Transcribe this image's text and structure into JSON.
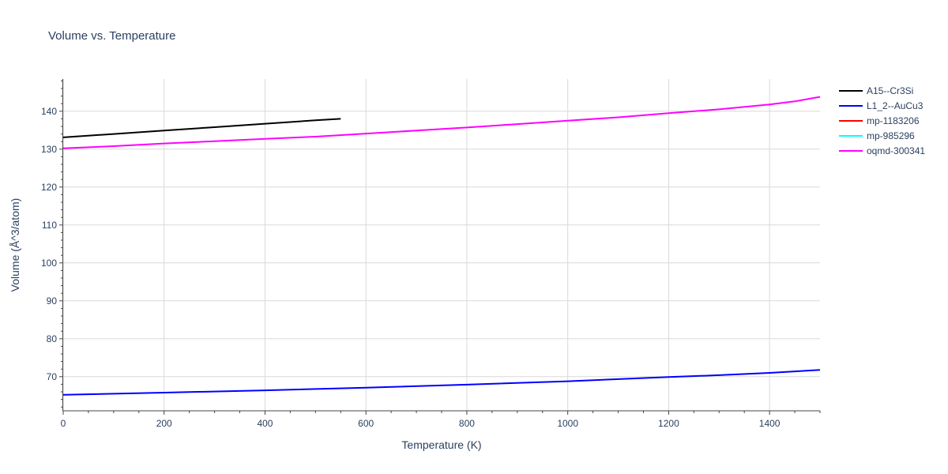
{
  "chart_data": {
    "type": "line",
    "title": "Volume vs. Temperature",
    "xlabel": "Temperature (K)",
    "ylabel": "Volume (Å^3/atom)",
    "xlim": [
      0,
      1500
    ],
    "ylim": [
      61,
      148.5
    ],
    "x_ticks": [
      0,
      200,
      400,
      600,
      800,
      1000,
      1200,
      1400
    ],
    "y_ticks": [
      70,
      80,
      90,
      100,
      110,
      120,
      130,
      140
    ],
    "grid": true,
    "legend_position": "top-right",
    "series": [
      {
        "name": "A15--Cr3Si",
        "color": "#000000",
        "x": [
          0,
          100,
          200,
          300,
          400,
          500,
          550
        ],
        "y": [
          133.1,
          134.0,
          134.9,
          135.8,
          136.7,
          137.6,
          138.0
        ]
      },
      {
        "name": "L1_2--AuCu3",
        "color": "#0000ff",
        "x": [
          0,
          200,
          400,
          600,
          800,
          1000,
          1200,
          1300,
          1400,
          1450,
          1500
        ],
        "y": [
          65.2,
          65.8,
          66.4,
          67.1,
          67.9,
          68.8,
          69.9,
          70.4,
          71.0,
          71.4,
          71.8
        ]
      },
      {
        "name": "mp-1183206",
        "color": "#ff0000",
        "x": [],
        "y": []
      },
      {
        "name": "mp-985296",
        "color": "#00ffff",
        "x": [],
        "y": []
      },
      {
        "name": "oqmd-300341",
        "color": "#ff00ff",
        "x": [
          0,
          100,
          200,
          300,
          400,
          500,
          600,
          700,
          800,
          900,
          1000,
          1100,
          1200,
          1300,
          1400,
          1450,
          1500
        ],
        "y": [
          130.2,
          130.8,
          131.5,
          132.1,
          132.7,
          133.3,
          134.1,
          134.9,
          135.7,
          136.6,
          137.5,
          138.4,
          139.5,
          140.5,
          141.8,
          142.6,
          143.8
        ]
      }
    ]
  }
}
